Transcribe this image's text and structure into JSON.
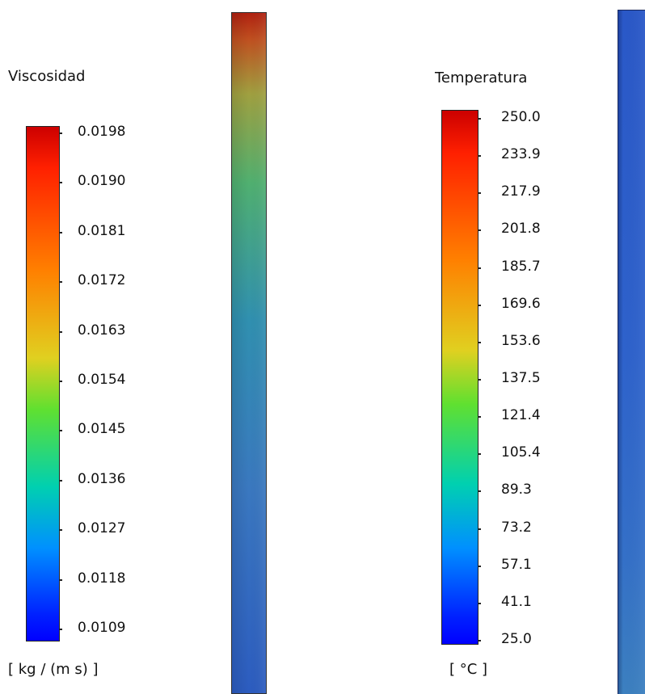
{
  "viscosity_legend": {
    "title": "Viscosidad",
    "units": "[ kg / (m s) ]",
    "ticks": [
      "0.0198",
      "0.0190",
      "0.0181",
      "0.0172",
      "0.0163",
      "0.0154",
      "0.0145",
      "0.0136",
      "0.0127",
      "0.0118",
      "0.0109"
    ],
    "min": 0.0109,
    "max": 0.0198
  },
  "temperature_legend": {
    "title": "Temperatura",
    "units": "[ °C ]",
    "ticks": [
      "250.0",
      "233.9",
      "217.9",
      "201.8",
      "185.7",
      "169.6",
      "153.6",
      "137.5",
      "121.4",
      "105.4",
      "89.3",
      "73.2",
      "57.1",
      "41.1",
      "25.0"
    ],
    "min": 25.0,
    "max": 250.0
  },
  "colormap": {
    "name": "jet",
    "stops": [
      "#0000ff",
      "#0080ff",
      "#00e0d0",
      "#40e040",
      "#e0e020",
      "#ff8000",
      "#cc0000"
    ]
  }
}
